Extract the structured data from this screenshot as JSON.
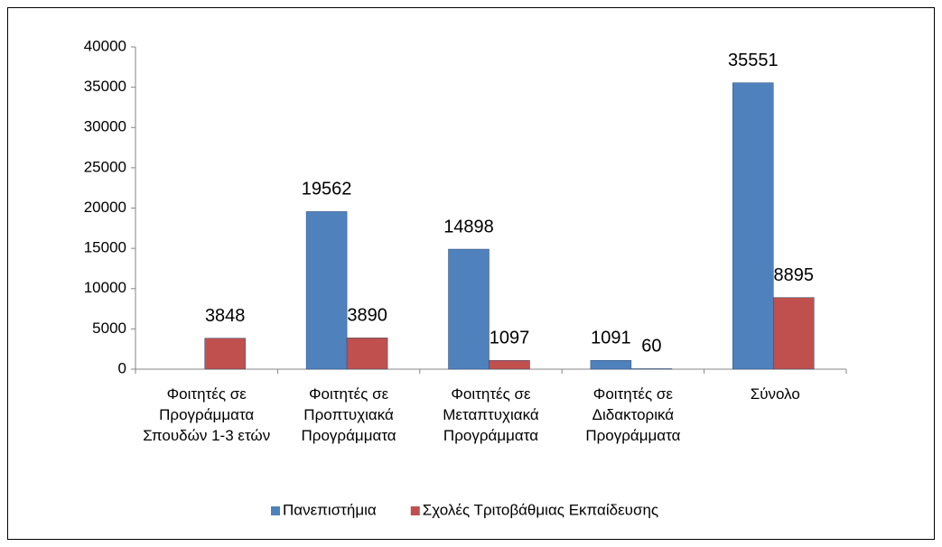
{
  "chart_data": {
    "type": "bar",
    "categories": [
      "Φοιτητές σε Προγράμματα Σπουδών 1-3 ετών",
      "Φοιτητές σε Προπτυχιακά Προγράμματα",
      "Φοιτητές σε Μεταπτυχιακά Προγράμματα",
      "Φοιτητές σε Διδακτορικά Προγράμματα",
      "Σύνολο"
    ],
    "series": [
      {
        "name": "Πανεπιστήμια",
        "color": "#4f81bd",
        "values": [
          null,
          19562,
          14898,
          1091,
          35551
        ]
      },
      {
        "name": "Σχολές Τριτοβάθμιας Εκπαίδευσης",
        "color": "#c0504d",
        "values": [
          3848,
          3890,
          1097,
          60,
          8895
        ]
      }
    ],
    "ylim": [
      0,
      40000
    ],
    "yticks": [
      0,
      5000,
      10000,
      15000,
      20000,
      25000,
      30000,
      35000,
      40000
    ],
    "grid": false,
    "legend": "bottom"
  }
}
